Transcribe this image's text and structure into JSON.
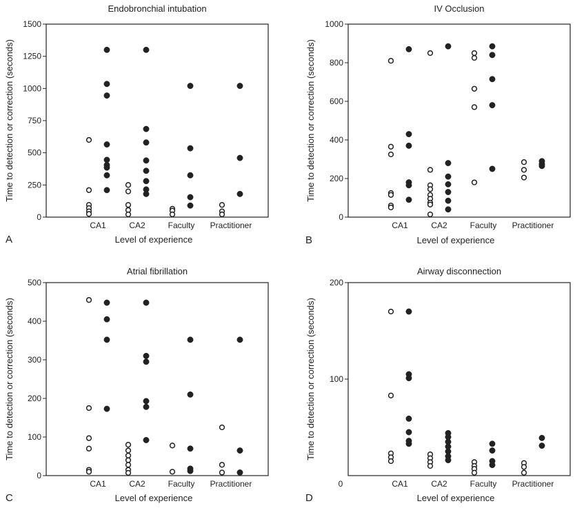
{
  "figure": {
    "panels": [
      "A",
      "B",
      "C",
      "D"
    ]
  },
  "colors": {
    "ink": "#222222",
    "background": "#ffffff"
  },
  "chart_data": [
    {
      "panel": "A",
      "type": "scatter",
      "title": "Endobronchial intubation",
      "xlabel": "Level of experience",
      "ylabel": "Time to detection or correction (seconds)",
      "categories": [
        "CA1",
        "CA2",
        "Faculty",
        "Practitioner"
      ],
      "yticks": [
        "0",
        "250",
        "500",
        "750",
        "1000",
        "1250",
        "1500"
      ],
      "ylim": [
        0,
        1500
      ],
      "marker_legend": "open circles = one group, filled circles = other group (no legend printed)",
      "series": [
        {
          "style": "open",
          "points": [
            {
              "cat": "CA1",
              "y": 600
            },
            {
              "cat": "CA1",
              "y": 210
            },
            {
              "cat": "CA1",
              "y": 95
            },
            {
              "cat": "CA1",
              "y": 70
            },
            {
              "cat": "CA1",
              "y": 45
            },
            {
              "cat": "CA1",
              "y": 25
            },
            {
              "cat": "CA2",
              "y": 250
            },
            {
              "cat": "CA2",
              "y": 200
            },
            {
              "cat": "CA2",
              "y": 95
            },
            {
              "cat": "CA2",
              "y": 55
            },
            {
              "cat": "CA2",
              "y": 20
            },
            {
              "cat": "Faculty",
              "y": 65
            },
            {
              "cat": "Faculty",
              "y": 50
            },
            {
              "cat": "Faculty",
              "y": 15
            },
            {
              "cat": "Practitioner",
              "y": 95
            },
            {
              "cat": "Practitioner",
              "y": 45
            },
            {
              "cat": "Practitioner",
              "y": 15
            }
          ]
        },
        {
          "style": "filled",
          "points": [
            {
              "cat": "CA1",
              "y": 1300
            },
            {
              "cat": "CA1",
              "y": 1035
            },
            {
              "cat": "CA1",
              "y": 945
            },
            {
              "cat": "CA1",
              "y": 565
            },
            {
              "cat": "CA1",
              "y": 445
            },
            {
              "cat": "CA1",
              "y": 405
            },
            {
              "cat": "CA1",
              "y": 385
            },
            {
              "cat": "CA1",
              "y": 325
            },
            {
              "cat": "CA1",
              "y": 210
            },
            {
              "cat": "CA2",
              "y": 1300
            },
            {
              "cat": "CA2",
              "y": 685
            },
            {
              "cat": "CA2",
              "y": 580
            },
            {
              "cat": "CA2",
              "y": 440
            },
            {
              "cat": "CA2",
              "y": 360
            },
            {
              "cat": "CA2",
              "y": 280
            },
            {
              "cat": "CA2",
              "y": 215
            },
            {
              "cat": "CA2",
              "y": 180
            },
            {
              "cat": "Faculty",
              "y": 1020
            },
            {
              "cat": "Faculty",
              "y": 535
            },
            {
              "cat": "Faculty",
              "y": 325
            },
            {
              "cat": "Faculty",
              "y": 155
            },
            {
              "cat": "Faculty",
              "y": 90
            },
            {
              "cat": "Practitioner",
              "y": 1020
            },
            {
              "cat": "Practitioner",
              "y": 460
            },
            {
              "cat": "Practitioner",
              "y": 180
            }
          ]
        }
      ]
    },
    {
      "panel": "B",
      "type": "scatter",
      "title": "IV Occlusion",
      "xlabel": "Level of experience",
      "ylabel": "Time to detection or correction (seconds)",
      "categories": [
        "CA1",
        "CA2",
        "Faculty",
        "Practitioner"
      ],
      "yticks": [
        "0",
        "200",
        "400",
        "600",
        "800",
        "1000"
      ],
      "ylim": [
        0,
        1000
      ],
      "series": [
        {
          "style": "open",
          "points": [
            {
              "cat": "CA1",
              "y": 810
            },
            {
              "cat": "CA1",
              "y": 365
            },
            {
              "cat": "CA1",
              "y": 325
            },
            {
              "cat": "CA1",
              "y": 125
            },
            {
              "cat": "CA1",
              "y": 115
            },
            {
              "cat": "CA1",
              "y": 60
            },
            {
              "cat": "CA1",
              "y": 50
            },
            {
              "cat": "CA2",
              "y": 850
            },
            {
              "cat": "CA2",
              "y": 245
            },
            {
              "cat": "CA2",
              "y": 165
            },
            {
              "cat": "CA2",
              "y": 145
            },
            {
              "cat": "CA2",
              "y": 115
            },
            {
              "cat": "CA2",
              "y": 95
            },
            {
              "cat": "CA2",
              "y": 75
            },
            {
              "cat": "CA2",
              "y": 65
            },
            {
              "cat": "CA2",
              "y": 10
            },
            {
              "cat": "Faculty",
              "y": 850
            },
            {
              "cat": "Faculty",
              "y": 825
            },
            {
              "cat": "Faculty",
              "y": 665
            },
            {
              "cat": "Faculty",
              "y": 570
            },
            {
              "cat": "Faculty",
              "y": 180
            },
            {
              "cat": "Practitioner",
              "y": 285
            },
            {
              "cat": "Practitioner",
              "y": 245
            },
            {
              "cat": "Practitioner",
              "y": 205
            }
          ]
        },
        {
          "style": "filled",
          "points": [
            {
              "cat": "CA1",
              "y": 870
            },
            {
              "cat": "CA1",
              "y": 430
            },
            {
              "cat": "CA1",
              "y": 370
            },
            {
              "cat": "CA1",
              "y": 180
            },
            {
              "cat": "CA1",
              "y": 165
            },
            {
              "cat": "CA1",
              "y": 90
            },
            {
              "cat": "CA2",
              "y": 885
            },
            {
              "cat": "CA2",
              "y": 280
            },
            {
              "cat": "CA2",
              "y": 210
            },
            {
              "cat": "CA2",
              "y": 170
            },
            {
              "cat": "CA2",
              "y": 130
            },
            {
              "cat": "CA2",
              "y": 85
            },
            {
              "cat": "CA2",
              "y": 40
            },
            {
              "cat": "Faculty",
              "y": 885
            },
            {
              "cat": "Faculty",
              "y": 840
            },
            {
              "cat": "Faculty",
              "y": 715
            },
            {
              "cat": "Faculty",
              "y": 580
            },
            {
              "cat": "Faculty",
              "y": 250
            },
            {
              "cat": "Practitioner",
              "y": 290
            },
            {
              "cat": "Practitioner",
              "y": 275
            },
            {
              "cat": "Practitioner",
              "y": 265
            }
          ]
        }
      ]
    },
    {
      "panel": "C",
      "type": "scatter",
      "title": "Atrial fibrillation",
      "xlabel": "Level of experience",
      "ylabel": "Time to detection or correction (seconds)",
      "categories": [
        "CA1",
        "CA2",
        "Faculty",
        "Practitioner"
      ],
      "yticks": [
        "0",
        "100",
        "200",
        "300",
        "400",
        "500"
      ],
      "ylim": [
        0,
        500
      ],
      "series": [
        {
          "style": "open",
          "points": [
            {
              "cat": "CA1",
              "y": 455
            },
            {
              "cat": "CA1",
              "y": 175
            },
            {
              "cat": "CA1",
              "y": 97
            },
            {
              "cat": "CA1",
              "y": 70
            },
            {
              "cat": "CA1",
              "y": 15
            },
            {
              "cat": "CA1",
              "y": 10
            },
            {
              "cat": "CA2",
              "y": 80
            },
            {
              "cat": "CA2",
              "y": 65
            },
            {
              "cat": "CA2",
              "y": 52
            },
            {
              "cat": "CA2",
              "y": 40
            },
            {
              "cat": "CA2",
              "y": 28
            },
            {
              "cat": "CA2",
              "y": 15
            },
            {
              "cat": "CA2",
              "y": 5
            },
            {
              "cat": "Faculty",
              "y": 78
            },
            {
              "cat": "Faculty",
              "y": 10
            },
            {
              "cat": "Practitioner",
              "y": 125
            },
            {
              "cat": "Practitioner",
              "y": 28
            },
            {
              "cat": "Practitioner",
              "y": 8
            }
          ]
        },
        {
          "style": "filled",
          "points": [
            {
              "cat": "CA1",
              "y": 448
            },
            {
              "cat": "CA1",
              "y": 405
            },
            {
              "cat": "CA1",
              "y": 352
            },
            {
              "cat": "CA1",
              "y": 173
            },
            {
              "cat": "CA2",
              "y": 448
            },
            {
              "cat": "CA2",
              "y": 310
            },
            {
              "cat": "CA2",
              "y": 295
            },
            {
              "cat": "CA2",
              "y": 193
            },
            {
              "cat": "CA2",
              "y": 178
            },
            {
              "cat": "CA2",
              "y": 92
            },
            {
              "cat": "Faculty",
              "y": 352
            },
            {
              "cat": "Faculty",
              "y": 210
            },
            {
              "cat": "Faculty",
              "y": 70
            },
            {
              "cat": "Faculty",
              "y": 18
            },
            {
              "cat": "Faculty",
              "y": 12
            },
            {
              "cat": "Practitioner",
              "y": 352
            },
            {
              "cat": "Practitioner",
              "y": 65
            },
            {
              "cat": "Practitioner",
              "y": 8
            }
          ]
        }
      ]
    },
    {
      "panel": "D",
      "type": "scatter",
      "title": "Airway disconnection",
      "xlabel": "Level of experience",
      "ylabel": "Time to detection or correction (seconds)",
      "categories": [
        "CA1",
        "CA2",
        "Faculty",
        "Practitioner"
      ],
      "origin_label": "0",
      "yticks": [
        "100",
        "200"
      ],
      "ylim": [
        0,
        200
      ],
      "series": [
        {
          "style": "open",
          "points": [
            {
              "cat": "CA1",
              "y": 170
            },
            {
              "cat": "CA1",
              "y": 83
            },
            {
              "cat": "CA1",
              "y": 23
            },
            {
              "cat": "CA1",
              "y": 19
            },
            {
              "cat": "CA1",
              "y": 15
            },
            {
              "cat": "CA2",
              "y": 22
            },
            {
              "cat": "CA2",
              "y": 18
            },
            {
              "cat": "CA2",
              "y": 14
            },
            {
              "cat": "CA2",
              "y": 10
            },
            {
              "cat": "Faculty",
              "y": 14
            },
            {
              "cat": "Faculty",
              "y": 10
            },
            {
              "cat": "Faculty",
              "y": 7
            },
            {
              "cat": "Faculty",
              "y": 3
            },
            {
              "cat": "Practitioner",
              "y": 13
            },
            {
              "cat": "Practitioner",
              "y": 9
            },
            {
              "cat": "Practitioner",
              "y": 3
            }
          ]
        },
        {
          "style": "filled",
          "points": [
            {
              "cat": "CA1",
              "y": 170
            },
            {
              "cat": "CA1",
              "y": 105
            },
            {
              "cat": "CA1",
              "y": 101
            },
            {
              "cat": "CA1",
              "y": 59
            },
            {
              "cat": "CA1",
              "y": 45
            },
            {
              "cat": "CA1",
              "y": 36
            },
            {
              "cat": "CA1",
              "y": 33
            },
            {
              "cat": "CA2",
              "y": 44
            },
            {
              "cat": "CA2",
              "y": 40
            },
            {
              "cat": "CA2",
              "y": 35
            },
            {
              "cat": "CA2",
              "y": 30
            },
            {
              "cat": "CA2",
              "y": 25
            },
            {
              "cat": "CA2",
              "y": 20
            },
            {
              "cat": "CA2",
              "y": 16
            },
            {
              "cat": "Faculty",
              "y": 33
            },
            {
              "cat": "Faculty",
              "y": 26
            },
            {
              "cat": "Faculty",
              "y": 15
            },
            {
              "cat": "Faculty",
              "y": 11
            },
            {
              "cat": "Practitioner",
              "y": 39
            },
            {
              "cat": "Practitioner",
              "y": 31
            }
          ]
        }
      ]
    }
  ]
}
